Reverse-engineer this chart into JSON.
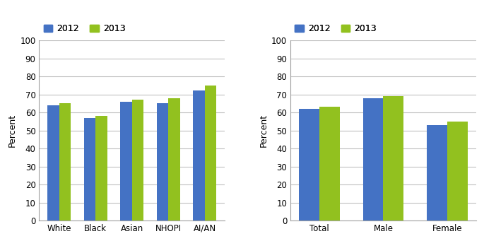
{
  "left": {
    "categories": [
      "White",
      "Black",
      "Asian",
      "NHOPI",
      "AI/AN"
    ],
    "values_2012": [
      64,
      57,
      66,
      65,
      72
    ],
    "values_2013": [
      65,
      58,
      67,
      68,
      75
    ],
    "ylabel": "Percent"
  },
  "right": {
    "categories": [
      "Total",
      "Male",
      "Female"
    ],
    "values_2012": [
      62,
      68,
      53
    ],
    "values_2013": [
      63,
      69,
      55
    ],
    "ylabel": "Percent"
  },
  "color_2012": "#4472C4",
  "color_2013": "#92C11F",
  "legend_labels": [
    "2012",
    "2013"
  ],
  "ylim": [
    0,
    100
  ],
  "yticks": [
    0,
    10,
    20,
    30,
    40,
    50,
    60,
    70,
    80,
    90,
    100
  ],
  "bar_width": 0.32,
  "grid_color": "#C0C0C0",
  "axis_color": "#A0A0A0",
  "label_fontsize": 9,
  "tick_fontsize": 8.5,
  "legend_fontsize": 9
}
